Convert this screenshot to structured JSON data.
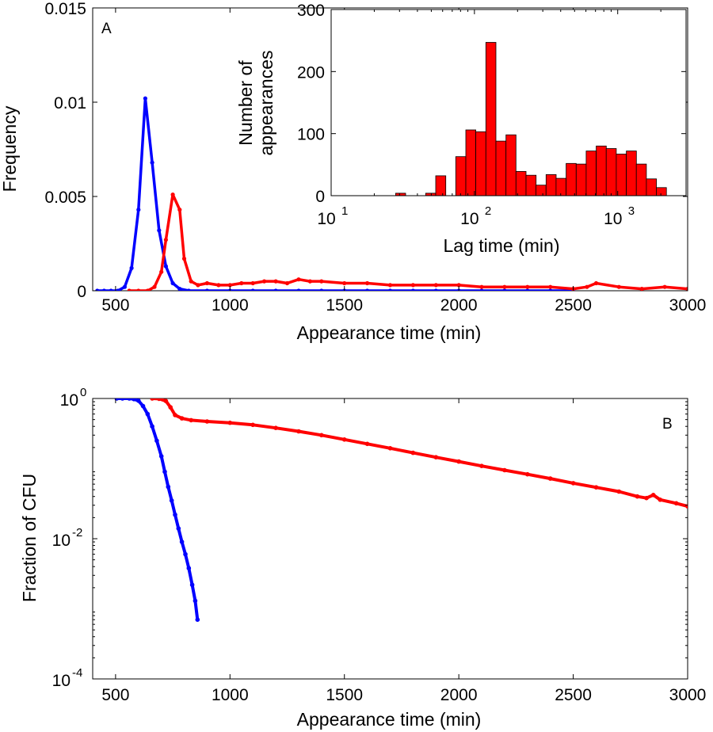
{
  "chart_data": [
    {
      "panel": "A",
      "type": "line",
      "panel_label": "A",
      "xlabel": "Appearance time (min)",
      "ylabel": "Frequency",
      "xlim": [
        400,
        3000
      ],
      "ylim": [
        0,
        0.015
      ],
      "xticks": [
        500,
        1000,
        1500,
        2000,
        2500,
        3000
      ],
      "xtick_labels": [
        "500",
        "1000",
        "1500",
        "2000",
        "2500",
        "3000"
      ],
      "yticks": [
        0,
        0.005,
        0.01,
        0.015
      ],
      "ytick_labels": [
        "0",
        "0.005",
        "0.01",
        "0.015"
      ],
      "series": [
        {
          "name": "blue",
          "color": "#0000ff",
          "points": [
            [
              420,
              0
            ],
            [
              450,
              0
            ],
            [
              480,
              0
            ],
            [
              510,
              0
            ],
            [
              540,
              0.0002
            ],
            [
              570,
              0.0012
            ],
            [
              600,
              0.0043
            ],
            [
              630,
              0.0102
            ],
            [
              660,
              0.0068
            ],
            [
              690,
              0.0032
            ],
            [
              720,
              0.0013
            ],
            [
              750,
              0.0004
            ],
            [
              780,
              0.0001
            ],
            [
              820,
              0
            ],
            [
              900,
              0
            ],
            [
              1000,
              0
            ],
            [
              1100,
              0
            ],
            [
              1200,
              0
            ],
            [
              1300,
              0
            ],
            [
              1400,
              0
            ],
            [
              1500,
              0
            ],
            [
              1600,
              0
            ],
            [
              1700,
              0
            ],
            [
              1800,
              0
            ],
            [
              1900,
              0
            ],
            [
              2000,
              0
            ],
            [
              2100,
              0
            ],
            [
              2200,
              0
            ],
            [
              2300,
              0
            ],
            [
              2400,
              0
            ],
            [
              2500,
              0
            ]
          ]
        },
        {
          "name": "red",
          "color": "#ff0000",
          "points": [
            [
              560,
              0
            ],
            [
              600,
              0
            ],
            [
              640,
              0
            ],
            [
              670,
              0.0002
            ],
            [
              700,
              0.001
            ],
            [
              720,
              0.0027
            ],
            [
              750,
              0.0051
            ],
            [
              780,
              0.0043
            ],
            [
              800,
              0.0017
            ],
            [
              830,
              0.0005
            ],
            [
              860,
              0.0003
            ],
            [
              900,
              0.0004
            ],
            [
              950,
              0.0003
            ],
            [
              1000,
              0.0003
            ],
            [
              1050,
              0.0004
            ],
            [
              1100,
              0.0004
            ],
            [
              1150,
              0.0005
            ],
            [
              1200,
              0.0005
            ],
            [
              1250,
              0.0004
            ],
            [
              1300,
              0.0006
            ],
            [
              1350,
              0.0005
            ],
            [
              1400,
              0.0005
            ],
            [
              1500,
              0.0004
            ],
            [
              1600,
              0.0004
            ],
            [
              1700,
              0.0003
            ],
            [
              1800,
              0.0003
            ],
            [
              1900,
              0.0003
            ],
            [
              2000,
              0.0003
            ],
            [
              2100,
              0.0002
            ],
            [
              2200,
              0.0002
            ],
            [
              2300,
              0.0002
            ],
            [
              2400,
              0.0002
            ],
            [
              2500,
              0.0001
            ],
            [
              2560,
              0.0002
            ],
            [
              2600,
              0.0004
            ],
            [
              2700,
              0.0002
            ],
            [
              2800,
              0.0001
            ],
            [
              2900,
              0.0002
            ],
            [
              3000,
              0.0001
            ]
          ]
        }
      ]
    },
    {
      "panel": "A-inset",
      "type": "bar",
      "xlabel": "Lag time (min)",
      "ylabel_lines": [
        "Number of",
        "appearances"
      ],
      "xscale": "log",
      "xlim": [
        10,
        3000
      ],
      "ylim": [
        0,
        300
      ],
      "xticks": [
        10,
        100,
        1000
      ],
      "xtick_base": "10",
      "xtick_exponents": [
        "1",
        "2",
        "3"
      ],
      "yticks": [
        0,
        100,
        200,
        300
      ],
      "ytick_labels": [
        "0",
        "100",
        "200",
        "300"
      ],
      "bar_color": "#ff0000",
      "bins": [
        {
          "left": 28.2,
          "right": 33.1,
          "value": 4
        },
        {
          "left": 45.7,
          "right": 53.7,
          "value": 4
        },
        {
          "left": 53.7,
          "right": 63.1,
          "value": 32
        },
        {
          "left": 74.1,
          "right": 87.1,
          "value": 63
        },
        {
          "left": 87.1,
          "right": 102.3,
          "value": 106
        },
        {
          "left": 102.3,
          "right": 120.2,
          "value": 103
        },
        {
          "left": 120.2,
          "right": 141.3,
          "value": 247
        },
        {
          "left": 141.3,
          "right": 166.0,
          "value": 88
        },
        {
          "left": 166.0,
          "right": 195.0,
          "value": 98
        },
        {
          "left": 195.0,
          "right": 229.1,
          "value": 39
        },
        {
          "left": 229.1,
          "right": 269.2,
          "value": 33
        },
        {
          "left": 269.2,
          "right": 316.2,
          "value": 17
        },
        {
          "left": 316.2,
          "right": 371.5,
          "value": 34
        },
        {
          "left": 371.5,
          "right": 436.5,
          "value": 28
        },
        {
          "left": 436.5,
          "right": 512.9,
          "value": 52
        },
        {
          "left": 512.9,
          "right": 602.6,
          "value": 51
        },
        {
          "left": 602.6,
          "right": 707.9,
          "value": 72
        },
        {
          "left": 707.9,
          "right": 831.8,
          "value": 80
        },
        {
          "left": 831.8,
          "right": 977.2,
          "value": 76
        },
        {
          "left": 977.2,
          "right": 1148.2,
          "value": 67
        },
        {
          "left": 1148.2,
          "right": 1349.0,
          "value": 72
        },
        {
          "left": 1349.0,
          "right": 1584.9,
          "value": 51
        },
        {
          "left": 1584.9,
          "right": 1862.1,
          "value": 27
        },
        {
          "left": 1862.1,
          "right": 2187.8,
          "value": 13
        }
      ]
    },
    {
      "panel": "B",
      "type": "line",
      "panel_label": "B",
      "xlabel": "Appearance time (min)",
      "ylabel": "Fraction of CFU",
      "yscale": "log",
      "xlim": [
        400,
        3000
      ],
      "ylim": [
        0.0001,
        1
      ],
      "xticks": [
        500,
        1000,
        1500,
        2000,
        2500,
        3000
      ],
      "xtick_labels": [
        "500",
        "1000",
        "1500",
        "2000",
        "2500",
        "3000"
      ],
      "yticks": [
        0.0001,
        0.01,
        1
      ],
      "ytick_base": "10",
      "ytick_exponents": [
        "-4",
        "-2",
        "0"
      ],
      "series": [
        {
          "name": "blue",
          "color": "#0000ff",
          "points": [
            [
              505,
              1
            ],
            [
              530,
              1
            ],
            [
              560,
              1
            ],
            [
              580,
              0.98
            ],
            [
              600,
              0.93
            ],
            [
              620,
              0.78
            ],
            [
              640,
              0.6
            ],
            [
              660,
              0.4
            ],
            [
              680,
              0.25
            ],
            [
              700,
              0.15
            ],
            [
              715,
              0.09
            ],
            [
              730,
              0.055
            ],
            [
              745,
              0.035
            ],
            [
              760,
              0.022
            ],
            [
              775,
              0.014
            ],
            [
              790,
              0.009
            ],
            [
              805,
              0.006
            ],
            [
              820,
              0.0038
            ],
            [
              835,
              0.0022
            ],
            [
              848,
              0.0013
            ],
            [
              858,
              0.0007
            ]
          ]
        },
        {
          "name": "red",
          "color": "#ff0000",
          "points": [
            [
              660,
              1
            ],
            [
              690,
              0.99
            ],
            [
              720,
              0.92
            ],
            [
              740,
              0.75
            ],
            [
              760,
              0.58
            ],
            [
              790,
              0.52
            ],
            [
              830,
              0.49
            ],
            [
              900,
              0.47
            ],
            [
              1000,
              0.45
            ],
            [
              1100,
              0.42
            ],
            [
              1200,
              0.38
            ],
            [
              1300,
              0.34
            ],
            [
              1400,
              0.3
            ],
            [
              1500,
              0.26
            ],
            [
              1600,
              0.225
            ],
            [
              1700,
              0.195
            ],
            [
              1800,
              0.168
            ],
            [
              1900,
              0.145
            ],
            [
              2000,
              0.126
            ],
            [
              2100,
              0.109
            ],
            [
              2200,
              0.095
            ],
            [
              2300,
              0.083
            ],
            [
              2400,
              0.072
            ],
            [
              2500,
              0.062
            ],
            [
              2600,
              0.054
            ],
            [
              2700,
              0.047
            ],
            [
              2780,
              0.04
            ],
            [
              2820,
              0.038
            ],
            [
              2850,
              0.042
            ],
            [
              2880,
              0.036
            ],
            [
              2950,
              0.032
            ],
            [
              3000,
              0.029
            ]
          ]
        }
      ]
    }
  ]
}
